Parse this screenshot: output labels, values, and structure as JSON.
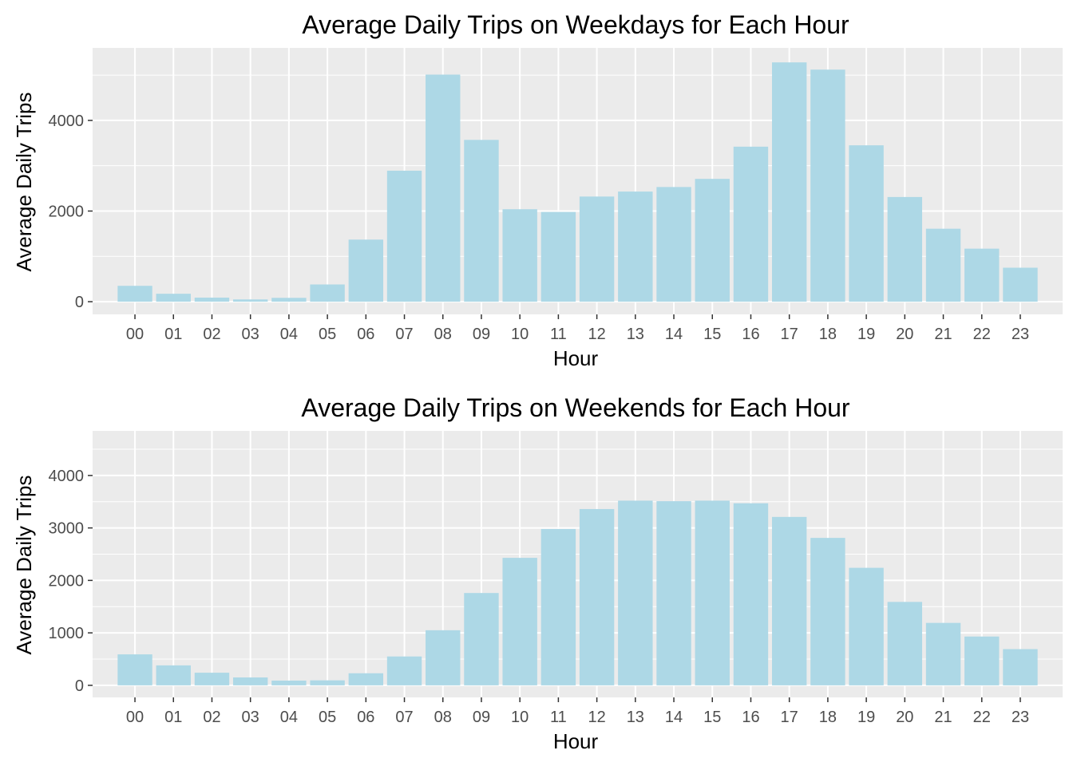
{
  "chart_data": [
    {
      "type": "bar",
      "title": "Average Daily Trips on Weekdays for Each Hour",
      "xlabel": "Hour",
      "ylabel": "Average Daily Trips",
      "categories": [
        "00",
        "01",
        "02",
        "03",
        "04",
        "05",
        "06",
        "07",
        "08",
        "09",
        "10",
        "11",
        "12",
        "13",
        "14",
        "15",
        "16",
        "17",
        "18",
        "19",
        "20",
        "21",
        "22",
        "23"
      ],
      "values": [
        350,
        175,
        90,
        50,
        85,
        380,
        1370,
        2890,
        5010,
        3570,
        2040,
        1980,
        2320,
        2430,
        2530,
        2710,
        3420,
        5280,
        5120,
        3450,
        2310,
        1610,
        1170,
        750
      ],
      "ylim": [
        -280,
        5600
      ],
      "yticks": [
        0,
        2000,
        4000
      ],
      "bar_color": "#add8e6",
      "panel_color": "#ebebeb",
      "grid": true
    },
    {
      "type": "bar",
      "title": "Average Daily Trips on Weekends for Each Hour",
      "xlabel": "Hour",
      "ylabel": "Average Daily Trips",
      "categories": [
        "00",
        "01",
        "02",
        "03",
        "04",
        "05",
        "06",
        "07",
        "08",
        "09",
        "10",
        "11",
        "12",
        "13",
        "14",
        "15",
        "16",
        "17",
        "18",
        "19",
        "20",
        "21",
        "22",
        "23"
      ],
      "values": [
        590,
        380,
        240,
        150,
        90,
        95,
        230,
        550,
        1050,
        1760,
        2430,
        2980,
        3360,
        3520,
        3510,
        3520,
        3470,
        3210,
        2810,
        2240,
        1590,
        1190,
        930,
        690
      ],
      "ylim": [
        -230,
        4850
      ],
      "yticks": [
        0,
        1000,
        2000,
        3000,
        4000
      ],
      "bar_color": "#add8e6",
      "panel_color": "#ebebeb",
      "grid": true
    }
  ]
}
